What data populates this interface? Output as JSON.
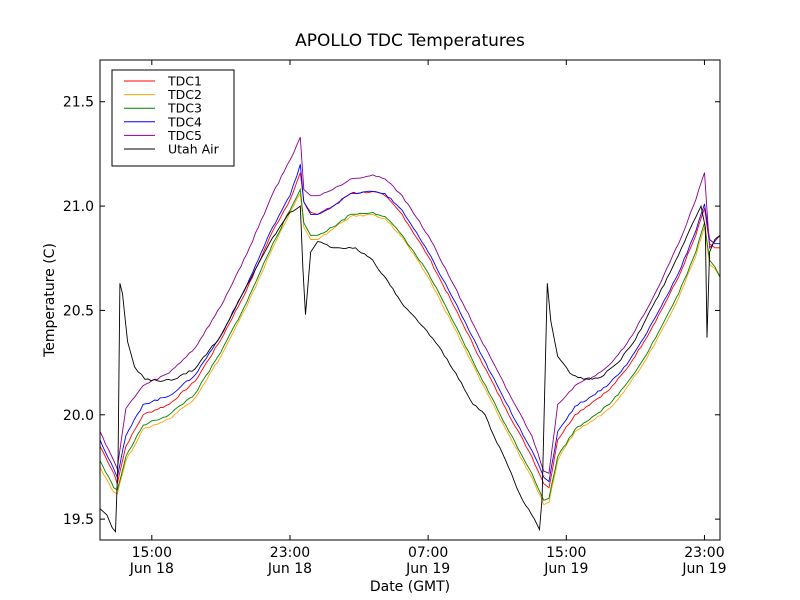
{
  "chart_data": {
    "type": "line",
    "title": "APOLLO TDC Temperatures",
    "xlabel": "Date (GMT)",
    "ylabel": "Temperature (C)",
    "x_units": "hours since Jun 18 00:00 GMT",
    "xlim": [
      12.0,
      47.9
    ],
    "ylim": [
      19.4,
      21.7
    ],
    "grid": false,
    "legend_position": "top-left",
    "yticks": [
      {
        "value": 19.5,
        "label": "19.5"
      },
      {
        "value": 20.0,
        "label": "20.0"
      },
      {
        "value": 20.5,
        "label": "20.5"
      },
      {
        "value": 21.0,
        "label": "21.0"
      },
      {
        "value": 21.5,
        "label": "21.5"
      }
    ],
    "xticks": [
      {
        "value": 15,
        "label": "15:00",
        "sublabel": "Jun 18"
      },
      {
        "value": 23,
        "label": "23:00",
        "sublabel": "Jun 18"
      },
      {
        "value": 31,
        "label": "07:00",
        "sublabel": "Jun 19"
      },
      {
        "value": 39,
        "label": "15:00",
        "sublabel": "Jun 19"
      },
      {
        "value": 47,
        "label": "23:00",
        "sublabel": "Jun 19"
      }
    ],
    "series": [
      {
        "name": "TDC1",
        "color": "#ff0000",
        "x": [
          12.0,
          12.8,
          13.0,
          13.5,
          14.5,
          16.0,
          17.5,
          19.0,
          20.5,
          22.0,
          23.0,
          23.6,
          23.8,
          24.2,
          24.6,
          25.5,
          26.5,
          27.8,
          28.5,
          29.5,
          31.0,
          32.5,
          34.0,
          35.5,
          37.0,
          37.7,
          38.0,
          38.5,
          39.5,
          40.5,
          41.5,
          42.5,
          43.5,
          44.5,
          45.5,
          46.5,
          47.0,
          47.3,
          47.6,
          47.9
        ],
        "y": [
          19.85,
          19.72,
          19.67,
          19.85,
          20.0,
          20.05,
          20.16,
          20.36,
          20.6,
          20.88,
          21.03,
          21.16,
          21.02,
          20.97,
          20.96,
          21.0,
          21.06,
          21.07,
          21.05,
          20.96,
          20.76,
          20.52,
          20.27,
          20.03,
          19.8,
          19.67,
          19.65,
          19.88,
          20.0,
          20.06,
          20.12,
          20.22,
          20.35,
          20.5,
          20.66,
          20.86,
          20.99,
          20.82,
          20.8,
          20.8
        ]
      },
      {
        "name": "TDC2",
        "color": "#ffa500",
        "x": [
          12.0,
          12.8,
          13.0,
          13.5,
          14.5,
          16.0,
          17.5,
          19.0,
          20.5,
          22.0,
          23.0,
          23.6,
          23.8,
          24.2,
          24.6,
          25.5,
          26.5,
          27.8,
          28.5,
          29.5,
          31.0,
          32.5,
          34.0,
          35.5,
          37.0,
          37.7,
          38.0,
          38.5,
          39.5,
          40.5,
          41.5,
          42.5,
          43.5,
          44.5,
          45.5,
          46.5,
          47.0,
          47.3,
          47.6,
          47.9
        ],
        "y": [
          19.75,
          19.63,
          19.62,
          19.78,
          19.93,
          19.98,
          20.08,
          20.28,
          20.52,
          20.8,
          20.97,
          21.06,
          20.9,
          20.84,
          20.84,
          20.89,
          20.95,
          20.96,
          20.94,
          20.85,
          20.66,
          20.42,
          20.17,
          19.93,
          19.7,
          19.57,
          19.58,
          19.78,
          19.92,
          19.97,
          20.03,
          20.13,
          20.25,
          20.4,
          20.56,
          20.76,
          20.9,
          20.72,
          20.7,
          20.66
        ]
      },
      {
        "name": "TDC3",
        "color": "#008000",
        "x": [
          12.0,
          12.8,
          13.0,
          13.5,
          14.5,
          16.0,
          17.5,
          19.0,
          20.5,
          22.0,
          23.0,
          23.6,
          23.8,
          24.2,
          24.6,
          25.5,
          26.5,
          27.8,
          28.5,
          29.5,
          31.0,
          32.5,
          34.0,
          35.5,
          37.0,
          37.7,
          38.0,
          38.5,
          39.5,
          40.5,
          41.5,
          42.5,
          43.5,
          44.5,
          45.5,
          46.5,
          47.0,
          47.3,
          47.6,
          47.9
        ],
        "y": [
          19.78,
          19.65,
          19.64,
          19.8,
          19.95,
          20.0,
          20.1,
          20.3,
          20.54,
          20.82,
          20.98,
          21.08,
          20.92,
          20.86,
          20.86,
          20.9,
          20.96,
          20.97,
          20.95,
          20.86,
          20.68,
          20.44,
          20.19,
          19.95,
          19.72,
          19.59,
          19.6,
          19.8,
          19.93,
          19.99,
          20.05,
          20.15,
          20.27,
          20.42,
          20.58,
          20.78,
          20.92,
          20.74,
          20.71,
          20.66
        ]
      },
      {
        "name": "TDC4",
        "color": "#0000ff",
        "x": [
          12.0,
          12.8,
          13.0,
          13.5,
          14.5,
          16.0,
          17.5,
          19.0,
          20.5,
          22.0,
          23.0,
          23.6,
          23.8,
          24.2,
          24.6,
          25.5,
          26.5,
          27.8,
          28.5,
          29.5,
          31.0,
          32.5,
          34.0,
          35.5,
          37.0,
          37.7,
          38.0,
          38.5,
          39.5,
          40.5,
          41.5,
          42.5,
          43.5,
          44.5,
          45.5,
          46.5,
          47.0,
          47.3,
          47.6,
          47.9
        ],
        "y": [
          19.88,
          19.74,
          19.7,
          19.9,
          20.05,
          20.09,
          20.19,
          20.38,
          20.62,
          20.9,
          21.05,
          21.2,
          21.02,
          20.96,
          20.96,
          21.0,
          21.06,
          21.07,
          21.06,
          20.98,
          20.78,
          20.55,
          20.3,
          20.06,
          19.83,
          19.7,
          19.68,
          19.92,
          20.04,
          20.09,
          20.15,
          20.24,
          20.37,
          20.52,
          20.68,
          20.88,
          21.01,
          20.84,
          20.82,
          20.82
        ]
      },
      {
        "name": "TDC5",
        "color": "#8b008b",
        "x": [
          12.0,
          12.8,
          13.0,
          13.5,
          14.5,
          16.0,
          17.5,
          19.0,
          20.5,
          22.0,
          23.0,
          23.6,
          23.8,
          24.2,
          24.6,
          25.5,
          26.5,
          27.8,
          28.5,
          29.5,
          31.0,
          32.5,
          34.0,
          35.5,
          37.0,
          37.7,
          38.0,
          38.5,
          39.5,
          40.5,
          41.5,
          42.5,
          43.5,
          44.5,
          45.5,
          46.5,
          47.0,
          47.3,
          47.6,
          47.9
        ],
        "y": [
          19.92,
          19.78,
          19.74,
          20.03,
          20.14,
          20.2,
          20.32,
          20.52,
          20.77,
          21.06,
          21.22,
          21.33,
          21.08,
          21.05,
          21.05,
          21.08,
          21.13,
          21.15,
          21.13,
          21.05,
          20.86,
          20.62,
          20.37,
          20.13,
          19.9,
          19.73,
          19.72,
          20.05,
          20.14,
          20.18,
          20.24,
          20.34,
          20.48,
          20.64,
          20.82,
          21.03,
          21.16,
          20.8,
          20.83,
          20.86
        ]
      },
      {
        "name": "Utah Air",
        "color": "#000000",
        "x": [
          12.0,
          12.4,
          12.7,
          12.9,
          13.05,
          13.15,
          13.3,
          13.6,
          14.0,
          14.6,
          15.5,
          16.3,
          17.5,
          19.0,
          20.5,
          22.0,
          23.0,
          23.6,
          23.75,
          23.9,
          24.2,
          24.6,
          25.5,
          26.8,
          27.8,
          28.8,
          29.6,
          30.6,
          31.6,
          32.6,
          33.6,
          34.3,
          34.8,
          35.5,
          36.3,
          37.0,
          37.45,
          37.6,
          37.9,
          38.1,
          38.5,
          39.2,
          40.0,
          41.0,
          42.0,
          43.0,
          44.0,
          45.0,
          46.0,
          46.8,
          47.05,
          47.15,
          47.3,
          47.6,
          47.9
        ],
        "y": [
          19.55,
          19.52,
          19.46,
          19.44,
          19.8,
          20.63,
          20.58,
          20.35,
          20.23,
          20.17,
          20.16,
          20.17,
          20.22,
          20.38,
          20.62,
          20.85,
          20.97,
          21.0,
          20.7,
          20.48,
          20.78,
          20.83,
          20.8,
          20.8,
          20.74,
          20.62,
          20.52,
          20.43,
          20.33,
          20.2,
          20.05,
          20.0,
          19.9,
          19.78,
          19.62,
          19.52,
          19.45,
          19.6,
          20.63,
          20.45,
          20.28,
          20.2,
          20.17,
          20.18,
          20.25,
          20.36,
          20.52,
          20.68,
          20.86,
          21.0,
          20.9,
          20.37,
          20.78,
          20.84,
          20.86
        ]
      }
    ]
  }
}
